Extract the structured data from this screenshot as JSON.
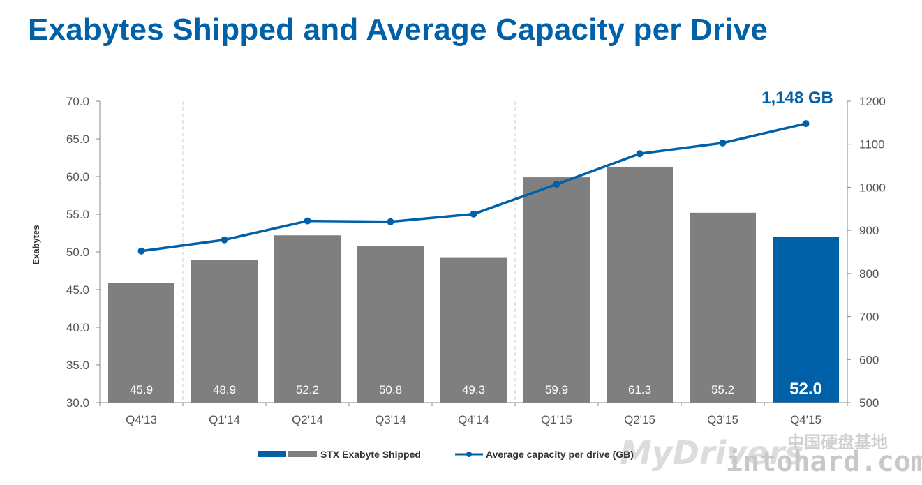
{
  "page_title": "Exabytes Shipped and Average Capacity per Drive",
  "chart_data": {
    "type": "bar",
    "title": "Exabytes Shipped and Average Capacity per Drive",
    "categories": [
      "Q4'13",
      "Q1'14",
      "Q2'14",
      "Q3'14",
      "Q4'14",
      "Q1'15",
      "Q2'15",
      "Q3'15",
      "Q4'15"
    ],
    "series": [
      {
        "name": "STX Exabyte Shipped",
        "type": "bar",
        "axis": "left",
        "values": [
          45.9,
          48.9,
          52.2,
          50.8,
          49.3,
          59.9,
          61.3,
          55.2,
          52.0
        ],
        "labels": [
          "45.9",
          "48.9",
          "52.2",
          "50.8",
          "49.3",
          "59.9",
          "61.3",
          "55.2",
          "52.0"
        ],
        "color": "#7f7f7f",
        "highlight_index": 8,
        "highlight_color": "#0060a8"
      },
      {
        "name": "Average capacity per drive (GB)",
        "type": "line",
        "axis": "right",
        "values": [
          852,
          878,
          922,
          920,
          938,
          1007,
          1078,
          1103,
          1148
        ],
        "color": "#0060a8"
      }
    ],
    "ylabel": "Exabytes",
    "ylim": [
      30,
      70
    ],
    "yticks": [
      "30.0",
      "35.0",
      "40.0",
      "45.0",
      "50.0",
      "55.0",
      "60.0",
      "65.0",
      "70.0"
    ],
    "y2lim": [
      500,
      1200
    ],
    "y2ticks": [
      "500",
      "600",
      "700",
      "800",
      "900",
      "1000",
      "1100",
      "1200"
    ],
    "annotation": "1,148 GB",
    "legend_position": "bottom",
    "grid": false,
    "dashed_separators_after": [
      "Q4'13",
      "Q4'14"
    ]
  },
  "watermark": {
    "text1": "MyDrivers",
    "text2": "intohard.com",
    "text3": "中国硬盘基地"
  }
}
